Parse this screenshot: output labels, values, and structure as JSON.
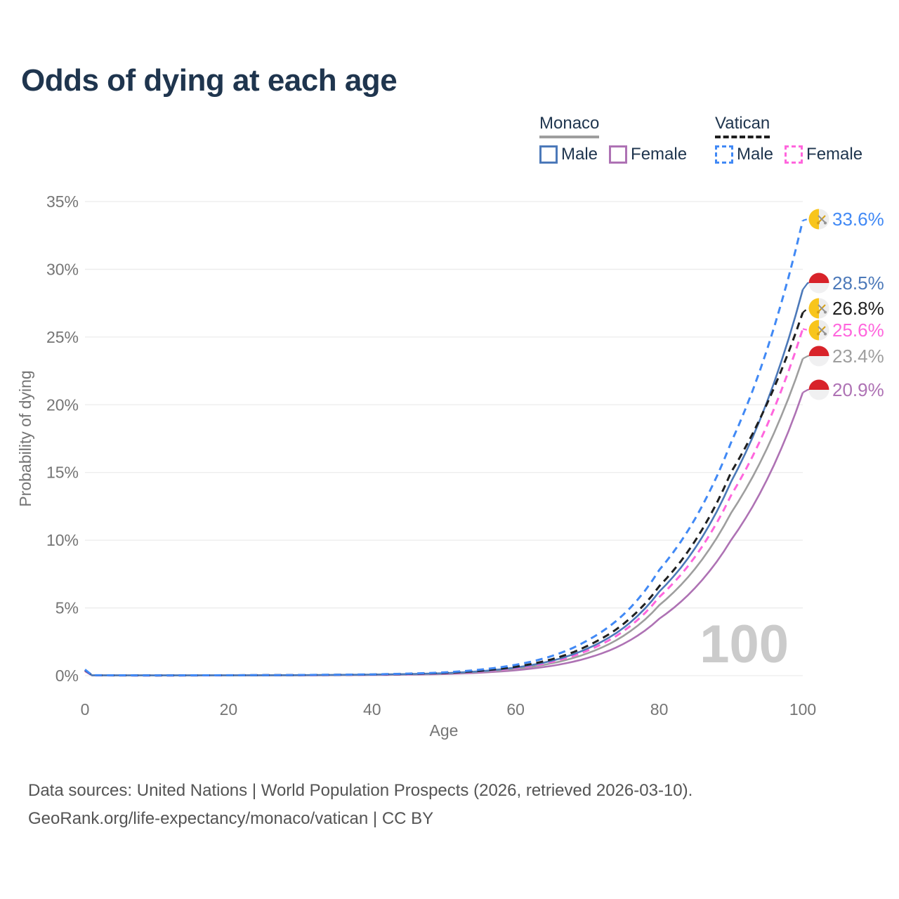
{
  "page": {
    "title": "Odds of dying at each age",
    "watermark": "100",
    "footer_line1": "Data sources: United Nations | World Population Prospects (2026, retrieved 2026-03-10).",
    "footer_line2": "GeoRank.org/life-expectancy/monaco/vatican | CC BY"
  },
  "colors": {
    "title_text": "#1f354e",
    "axis_text": "#757575",
    "gridline": "#ececec",
    "watermark": "#cbcbcb",
    "footer_text": "#545454"
  },
  "flags": {
    "monaco": {
      "top": "#d8232a",
      "bottom": "#f0f0f1"
    },
    "vatican": {
      "left": "#f8c51c",
      "right": "#ededed",
      "key_gold": "#d4a017",
      "key_gray": "#949494"
    }
  },
  "legend": {
    "groups": [
      {
        "id": "monaco",
        "label": "Monaco",
        "line_style": "solid",
        "underline_color": "#9e9e9e",
        "items": [
          {
            "id": "monaco_male",
            "label": "Male",
            "color": "#4c79b9",
            "dash": false
          },
          {
            "id": "monaco_female",
            "label": "Female",
            "color": "#ae72b4",
            "dash": false
          }
        ]
      },
      {
        "id": "vatican",
        "label": "Vatican",
        "line_style": "dashed",
        "underline_color": "#1f1f1f",
        "items": [
          {
            "id": "vatican_male",
            "label": "Male",
            "color": "#4189f5",
            "dash": true
          },
          {
            "id": "vatican_female",
            "label": "Female",
            "color": "#ff66dd",
            "dash": true
          }
        ]
      }
    ]
  },
  "chart_data": {
    "type": "line",
    "title": "Odds of dying at each age",
    "xlabel": "Age",
    "ylabel": "Probability of dying",
    "xlim": [
      0,
      100
    ],
    "ylim": [
      0,
      35
    ],
    "grid": "horizontal-only",
    "legend_position": "top-right",
    "x_ticks": [
      {
        "value": 0,
        "label": "0"
      },
      {
        "value": 20,
        "label": "20"
      },
      {
        "value": 40,
        "label": "40"
      },
      {
        "value": 60,
        "label": "60"
      },
      {
        "value": 80,
        "label": "80"
      },
      {
        "value": 100,
        "label": "100"
      }
    ],
    "y_ticks": [
      {
        "value": 0,
        "label": "0%"
      },
      {
        "value": 5,
        "label": "5%"
      },
      {
        "value": 10,
        "label": "10%"
      },
      {
        "value": 15,
        "label": "15%"
      },
      {
        "value": 20,
        "label": "20%"
      },
      {
        "value": 25,
        "label": "25%"
      },
      {
        "value": 30,
        "label": "30%"
      },
      {
        "value": 35,
        "label": "35%"
      }
    ],
    "sample_ages": [
      0,
      1,
      10,
      20,
      30,
      40,
      50,
      60,
      70,
      80,
      90,
      100
    ],
    "series": [
      {
        "id": "monaco_male",
        "country": "Monaco",
        "sex": "Male",
        "color": "#4c79b9",
        "dash": false,
        "flag": "monaco",
        "end_value": 28.5,
        "end_label": "28.5%",
        "values": [
          0.4,
          0.025,
          0.018,
          0.026,
          0.04,
          0.08,
          0.18,
          0.6,
          2.0,
          6.2,
          14.3,
          28.5
        ]
      },
      {
        "id": "monaco_female",
        "country": "Monaco",
        "sex": "Female",
        "color": "#ae72b4",
        "dash": false,
        "flag": "monaco",
        "end_value": 20.9,
        "end_label": "20.9%",
        "values": [
          0.32,
          0.018,
          0.013,
          0.018,
          0.028,
          0.05,
          0.12,
          0.4,
          1.3,
          4.2,
          10.0,
          20.9
        ]
      },
      {
        "id": "monaco_both",
        "country": "Monaco",
        "sex": "Both",
        "color": "#9e9e9e",
        "dash": false,
        "flag": "monaco",
        "end_value": 23.4,
        "end_label": "23.4%",
        "values": [
          0.36,
          0.021,
          0.015,
          0.022,
          0.034,
          0.065,
          0.15,
          0.5,
          1.65,
          5.2,
          12.0,
          23.4
        ]
      },
      {
        "id": "vatican_male",
        "country": "Vatican",
        "sex": "Male",
        "color": "#4189f5",
        "dash": true,
        "flag": "vatican",
        "end_value": 33.6,
        "end_label": "33.6%",
        "values": [
          0.45,
          0.03,
          0.02,
          0.03,
          0.05,
          0.095,
          0.24,
          0.8,
          2.6,
          7.8,
          17.2,
          33.6
        ]
      },
      {
        "id": "vatican_female",
        "country": "Vatican",
        "sex": "Female",
        "color": "#ff66dd",
        "dash": true,
        "flag": "vatican",
        "end_value": 25.6,
        "end_label": "25.6%",
        "values": [
          0.38,
          0.022,
          0.016,
          0.024,
          0.038,
          0.072,
          0.17,
          0.55,
          1.85,
          5.8,
          13.3,
          25.6
        ]
      },
      {
        "id": "vatican_both",
        "country": "Vatican",
        "sex": "Both",
        "color": "#1f1f1f",
        "dash": true,
        "flag": "vatican",
        "end_value": 26.8,
        "end_label": "26.8%",
        "values": [
          0.42,
          0.026,
          0.018,
          0.027,
          0.044,
          0.085,
          0.2,
          0.66,
          2.2,
          6.6,
          15.0,
          26.8
        ]
      }
    ]
  }
}
